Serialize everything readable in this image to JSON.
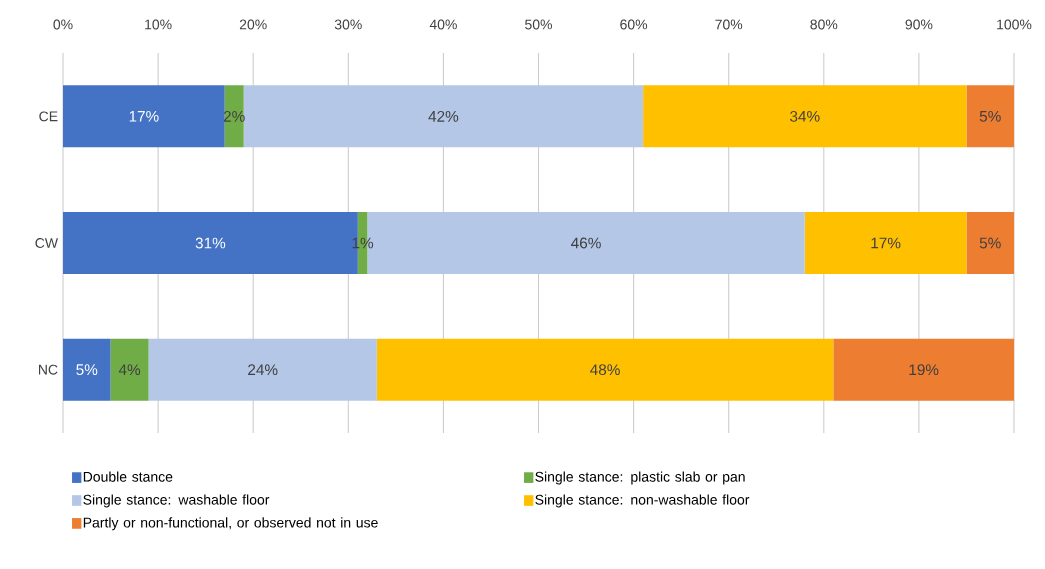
{
  "chart_data": {
    "type": "bar",
    "orientation": "horizontal",
    "stacked": true,
    "categories": [
      "CE",
      "CW",
      "NC"
    ],
    "series": [
      {
        "name": "Double stance",
        "color": "#4472c4",
        "values": [
          17,
          31,
          5
        ],
        "value_labels": [
          "17%",
          "31%",
          "5%"
        ]
      },
      {
        "name": "Single stance: plastic slab or pan",
        "color": "#70ad47",
        "values": [
          2,
          1,
          4
        ],
        "value_labels": [
          "2%",
          "1%",
          "4%"
        ]
      },
      {
        "name": "Single stance: washable floor",
        "color": "#b4c7e7",
        "values": [
          42,
          46,
          24
        ],
        "value_labels": [
          "42%",
          "46%",
          "24%"
        ]
      },
      {
        "name": "Single stance: non-washable floor",
        "color": "#ffc000",
        "values": [
          34,
          17,
          48
        ],
        "value_labels": [
          "34%",
          "17%",
          "48%"
        ]
      },
      {
        "name": "Partly or non-functional, or observed not in use",
        "color": "#ed7d31",
        "values": [
          5,
          5,
          19
        ],
        "value_labels": [
          "5%",
          "5%",
          "19%"
        ]
      }
    ],
    "xlim": [
      0,
      100
    ],
    "xticks": [
      {
        "value": 0,
        "label": "0%"
      },
      {
        "value": 10,
        "label": "10%"
      },
      {
        "value": 20,
        "label": "20%"
      },
      {
        "value": 30,
        "label": "30%"
      },
      {
        "value": 40,
        "label": "40%"
      },
      {
        "value": 50,
        "label": "50%"
      },
      {
        "value": 60,
        "label": "60%"
      },
      {
        "value": 70,
        "label": "70%"
      },
      {
        "value": 80,
        "label": "80%"
      },
      {
        "value": 90,
        "label": "90%"
      },
      {
        "value": 100,
        "label": "100%"
      }
    ],
    "grid": "x",
    "legend": "bottom"
  }
}
